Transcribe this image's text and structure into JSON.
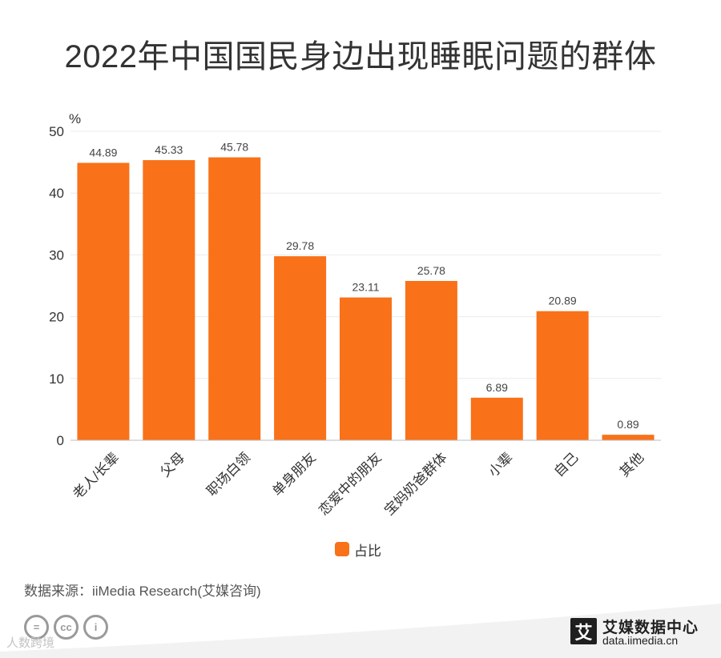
{
  "chart_data": {
    "type": "bar",
    "title": "2022年中国国民身边出现睡眠问题的群体",
    "ylabel": "%",
    "xlabel": "",
    "ylim": [
      0,
      50
    ],
    "yticks": [
      0,
      10,
      20,
      30,
      40,
      50
    ],
    "grid": true,
    "categories": [
      "老人/长辈",
      "父母",
      "职场白领",
      "单身朋友",
      "恋爱中的朋友",
      "宝妈奶爸群体",
      "小辈",
      "自己",
      "其他"
    ],
    "series": [
      {
        "name": "占比",
        "color": "#f97119",
        "values": [
          44.89,
          45.33,
          45.78,
          29.78,
          23.11,
          25.78,
          6.89,
          20.89,
          0.89
        ],
        "labels": [
          "44.89",
          "45.33",
          "45.78",
          "29.78",
          "23.11",
          "25.78",
          "6.89",
          "20.89",
          "0.89"
        ]
      }
    ],
    "legend_position": "bottom-center"
  },
  "source": "数据来源：iiMedia Research(艾媒咨询)",
  "footer": {
    "license_icons": [
      "=",
      "cc",
      "i"
    ],
    "watermark": "人数跨境",
    "brand_char": "艾",
    "brand_name": "艾媒数据中心",
    "brand_url": "data.iimedia.cn",
    "band_color": "#f2f2f2"
  }
}
